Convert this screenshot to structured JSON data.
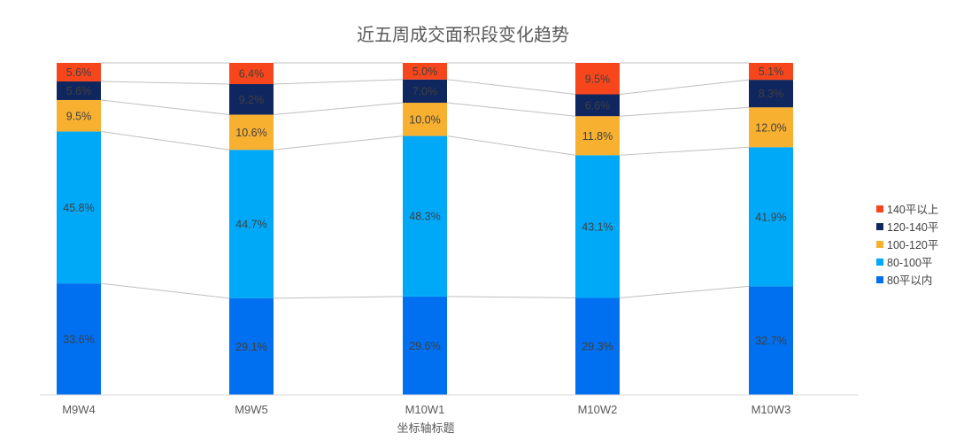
{
  "chart_data": {
    "type": "bar",
    "stacked": true,
    "normalized_percent": true,
    "title": "近五周成交面积段变化趋势",
    "xlabel": "坐标轴标题",
    "ylabel": "",
    "categories": [
      "M9W4",
      "M9W5",
      "M10W1",
      "M10W2",
      "M10W3"
    ],
    "series": [
      {
        "name": "80平以内",
        "values": [
          33.6,
          29.1,
          29.6,
          29.3,
          32.7
        ],
        "labels": [
          "33.6%",
          "29.1%",
          "29.6%",
          "29.3%",
          "32.7%"
        ],
        "color": "#0070f0"
      },
      {
        "name": "80-100平",
        "values": [
          45.8,
          44.7,
          48.3,
          43.1,
          41.9
        ],
        "labels": [
          "45.8%",
          "44.7%",
          "48.3%",
          "43.1%",
          "41.9%"
        ],
        "color": "#00a8f8"
      },
      {
        "name": "100-120平",
        "values": [
          9.5,
          10.6,
          10.0,
          11.8,
          12.0
        ],
        "labels": [
          "9.5%",
          "10.6%",
          "10.0%",
          "11.8%",
          "12.0%"
        ],
        "color": "#f8b030"
      },
      {
        "name": "120-140平",
        "values": [
          5.6,
          9.2,
          7.0,
          6.6,
          8.3
        ],
        "labels": [
          "5.6%",
          "9.2%",
          "7.0%",
          "6.6%",
          "8.3%"
        ],
        "color": "#10265e"
      },
      {
        "name": "140平以上",
        "values": [
          5.6,
          6.4,
          5.0,
          9.5,
          5.1
        ],
        "labels": [
          "5.6%",
          "6.4%",
          "5.0%",
          "9.5%",
          "5.1%"
        ],
        "color": "#f8461c"
      }
    ],
    "ylim": [
      0,
      100
    ],
    "grid": false,
    "series_connector_lines": true,
    "legend_position": "right",
    "legend_order": [
      "140平以上",
      "120-140平",
      "100-120平",
      "80-100平",
      "80平以内"
    ]
  }
}
